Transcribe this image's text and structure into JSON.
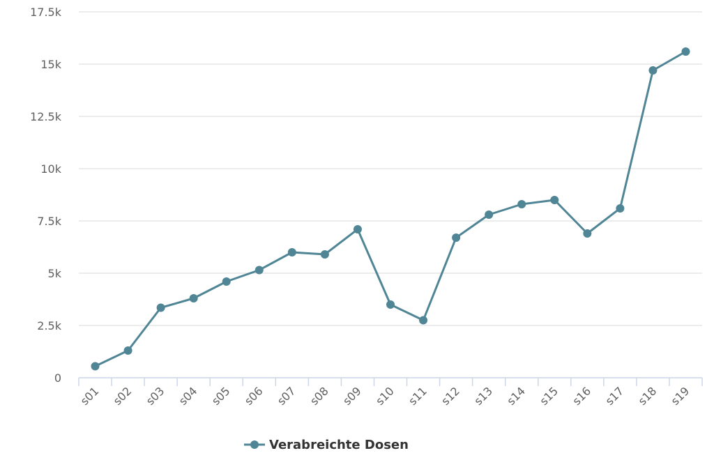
{
  "chart_data": {
    "type": "line",
    "categories": [
      "s01",
      "s02",
      "s03",
      "s04",
      "s05",
      "s06",
      "s07",
      "s08",
      "s09",
      "s10",
      "s11",
      "s12",
      "s13",
      "s14",
      "s15",
      "s16",
      "s17",
      "s18",
      "s19"
    ],
    "series": [
      {
        "name": "Verabreichte Dosen",
        "color": "#4f8595",
        "values": [
          550,
          1300,
          3350,
          3800,
          4600,
          5150,
          6000,
          5900,
          7100,
          3500,
          2750,
          6700,
          7800,
          8300,
          8500,
          6900,
          8100,
          14700,
          15600
        ]
      }
    ],
    "y_ticks": [
      0,
      2500,
      5000,
      7500,
      10000,
      12500,
      15000,
      17500
    ],
    "y_tick_labels": [
      "0",
      "2.5k",
      "5k",
      "7.5k",
      "10k",
      "12.5k",
      "15k",
      "17.5k"
    ],
    "ylim": [
      0,
      17500
    ],
    "grid": "horizontal",
    "legend": "bottom-center",
    "title": "",
    "xlabel": "",
    "ylabel": ""
  }
}
